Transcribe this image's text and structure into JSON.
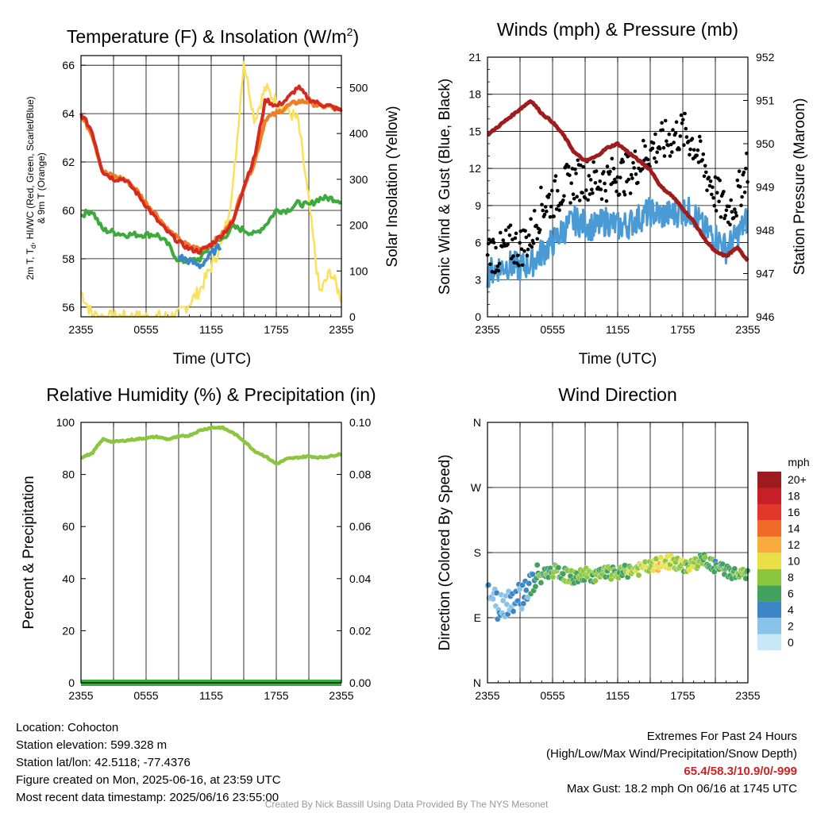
{
  "colors": {
    "t2m": "#d52a1f",
    "td": "#3caa3c",
    "hiwc": "#3a86c8",
    "t9m": "#f07e26",
    "solar": "#fbe05a",
    "wind": "#4a9ad6",
    "gust": "#000000",
    "pressure": "#a01b1b",
    "rh": "#8cc540",
    "precip": "#3caa3c"
  },
  "x_axis": {
    "tick_labels": [
      "2355",
      "0555",
      "1155",
      "1755",
      "2355"
    ],
    "xlabel": "Time (UTC)"
  },
  "panels": {
    "temperature": {
      "title": "Temperature (F) & Insolation (W/m",
      "title_sup": "2",
      "title_close": ")",
      "ylabel_left_line1": "2m T, T",
      "ylabel_left_sub": "d",
      "ylabel_left_line1_rest": ", HI/WC (Red, Green, Scarlet/Blue)",
      "ylabel_left_line2": "& 9m T (Orange)",
      "ylabel_right": "Solar Insolation (Yellow)",
      "xlabel": "Time (UTC)",
      "left_ticks": [
        "56",
        "58",
        "60",
        "62",
        "64",
        "66"
      ],
      "right_ticks": [
        "0",
        "100",
        "200",
        "300",
        "400",
        "500"
      ]
    },
    "winds": {
      "title": "Winds (mph) & Pressure (mb)",
      "ylabel_left": "Sonic Wind & Gust (Blue, Black)",
      "ylabel_right": "Station Pressure (Maroon)",
      "xlabel": "Time (UTC)",
      "left_ticks": [
        "0",
        "3",
        "6",
        "9",
        "12",
        "15",
        "18",
        "21"
      ],
      "right_ticks": [
        "946",
        "947",
        "948",
        "949",
        "950",
        "951",
        "952"
      ]
    },
    "humidity": {
      "title": "Relative Humidity (%) & Precipitation (in)",
      "ylabel_left": "Percent & Precipitation",
      "left_ticks": [
        "0",
        "20",
        "40",
        "60",
        "80",
        "100"
      ],
      "right_ticks": [
        "0.00",
        "0.02",
        "0.04",
        "0.06",
        "0.08",
        "0.10"
      ]
    },
    "direction": {
      "title": "Wind Direction",
      "ylabel_left": "Direction (Colored By Speed)",
      "left_ticks": [
        "N",
        "E",
        "S",
        "W",
        "N"
      ],
      "colorbar_title": "mph",
      "colorbar_labels": [
        "0",
        "2",
        "4",
        "6",
        "8",
        "10",
        "12",
        "14",
        "16",
        "18",
        "20+"
      ],
      "colorbar_colors": [
        "#c8e8f8",
        "#89c3ea",
        "#3c86c6",
        "#42a15b",
        "#8cc63e",
        "#e9df47",
        "#f9ab3d",
        "#f26a27",
        "#e2382b",
        "#c62026",
        "#9b1b1e"
      ]
    }
  },
  "chart_data": [
    {
      "type": "line",
      "title": "Temperature (F) & Insolation (W/m2)",
      "xlabel": "Time (UTC)",
      "x": [
        0,
        1,
        2,
        3,
        4,
        5,
        6,
        7,
        8,
        9,
        10,
        11,
        12,
        13,
        14,
        15,
        16,
        17,
        18,
        19,
        20,
        21,
        22,
        23,
        24
      ],
      "x_tick_labels": [
        "2355",
        "0555",
        "1155",
        "1755",
        "2355"
      ],
      "ylim": [
        55.6,
        66.4
      ],
      "y2lim": [
        0,
        570
      ],
      "series": [
        {
          "name": "2m T (Red)",
          "values": [
            64.0,
            63.3,
            61.6,
            61.3,
            61.3,
            60.8,
            60.2,
            59.6,
            59.1,
            58.7,
            58.4,
            58.3,
            58.6,
            59.0,
            59.5,
            61.0,
            62.2,
            64.6,
            64.3,
            64.6,
            65.1,
            64.6,
            64.4,
            64.3,
            64.1
          ]
        },
        {
          "name": "Dewpoint (Green)",
          "values": [
            59.8,
            60.0,
            59.2,
            59.1,
            59.0,
            59.0,
            59.0,
            59.0,
            58.6,
            57.9,
            57.9,
            58.0,
            58.6,
            58.8,
            59.3,
            59.2,
            59.0,
            59.4,
            60.0,
            60.0,
            60.3,
            60.2,
            60.5,
            60.5,
            60.4
          ]
        },
        {
          "name": "HI/WC (Scarlet/Blue)",
          "values": [
            null,
            null,
            null,
            null,
            null,
            null,
            null,
            null,
            null,
            58.1,
            57.9,
            57.7,
            58.2,
            58.6,
            null,
            null,
            null,
            null,
            null,
            null,
            null,
            null,
            null,
            null,
            null
          ]
        },
        {
          "name": "9m T (Orange)",
          "values": [
            63.9,
            63.2,
            61.6,
            61.4,
            61.3,
            60.9,
            60.3,
            59.8,
            59.2,
            58.8,
            58.5,
            58.4,
            58.6,
            59.0,
            59.6,
            61.0,
            62.0,
            63.8,
            64.0,
            64.3,
            64.5,
            64.5,
            64.3,
            64.3,
            64.1
          ]
        },
        {
          "name": "Solar Insolation (Yellow)",
          "axis": "right",
          "values": [
            55,
            5,
            0,
            0,
            0,
            0,
            0,
            0,
            0,
            5,
            30,
            60,
            110,
            160,
            280,
            560,
            430,
            500,
            470,
            450,
            430,
            250,
            50,
            100,
            40
          ]
        }
      ]
    },
    {
      "type": "line",
      "title": "Winds (mph) & Pressure (mb)",
      "xlabel": "Time (UTC)",
      "x": [
        0,
        1,
        2,
        3,
        4,
        5,
        6,
        7,
        8,
        9,
        10,
        11,
        12,
        13,
        14,
        15,
        16,
        17,
        18,
        19,
        20,
        21,
        22,
        23,
        24
      ],
      "x_tick_labels": [
        "2355",
        "0555",
        "1155",
        "1755",
        "2355"
      ],
      "ylim": [
        0,
        21
      ],
      "y2lim": [
        946,
        952
      ],
      "series": [
        {
          "name": "Sonic Wind (Blue)",
          "values": [
            3.5,
            4.0,
            4.2,
            4.0,
            4.3,
            5.2,
            6.0,
            7.0,
            7.8,
            7.5,
            7.2,
            7.8,
            7.3,
            7.5,
            8.0,
            8.5,
            8.2,
            8.3,
            8.6,
            8.4,
            7.0,
            6.5,
            5.5,
            6.5,
            8.0
          ]
        },
        {
          "name": "Gust (Black)",
          "values": [
            5.5,
            5.0,
            5.8,
            5.6,
            6.5,
            9.0,
            9.5,
            10.5,
            11.0,
            11.2,
            11.0,
            11.0,
            11.5,
            11.5,
            12.5,
            13.5,
            14.0,
            14.5,
            15.0,
            14.0,
            12.0,
            10.0,
            8.5,
            9.5,
            12.5
          ]
        },
        {
          "name": "Station Pressure (Maroon)",
          "axis": "right",
          "values": [
            950.2,
            950.4,
            950.6,
            950.8,
            951.0,
            950.7,
            950.5,
            950.2,
            949.8,
            949.6,
            949.7,
            949.9,
            950.0,
            949.8,
            949.6,
            949.4,
            949.0,
            948.8,
            948.5,
            948.2,
            947.8,
            947.5,
            947.4,
            947.6,
            947.3
          ]
        }
      ]
    },
    {
      "type": "line",
      "title": "Relative Humidity (%) & Precipitation (in)",
      "x": [
        0,
        1,
        2,
        3,
        4,
        5,
        6,
        7,
        8,
        9,
        10,
        11,
        12,
        13,
        14,
        15,
        16,
        17,
        18,
        19,
        20,
        21,
        22,
        23,
        24
      ],
      "x_tick_labels": [
        "2355",
        "0555",
        "1155",
        "1755",
        "2355"
      ],
      "ylim": [
        0,
        100
      ],
      "y2lim": [
        0,
        0.1
      ],
      "series": [
        {
          "name": "Relative Humidity",
          "values": [
            86.5,
            88.0,
            93.5,
            92.5,
            93.0,
            93.5,
            94.0,
            94.5,
            93.5,
            94.5,
            95.0,
            97.0,
            98.0,
            98.0,
            96.0,
            93.0,
            89.0,
            87.0,
            84.0,
            86.0,
            86.5,
            87.0,
            86.5,
            87.0,
            88.0
          ]
        },
        {
          "name": "Precipitation",
          "axis": "right",
          "values": [
            0,
            0,
            0,
            0,
            0,
            0,
            0,
            0,
            0,
            0,
            0,
            0,
            0,
            0,
            0,
            0,
            0,
            0,
            0,
            0,
            0,
            0,
            0,
            0,
            0
          ]
        }
      ]
    },
    {
      "type": "scatter",
      "title": "Wind Direction",
      "x": [
        0,
        1,
        2,
        3,
        4,
        5,
        6,
        7,
        8,
        9,
        10,
        11,
        12,
        13,
        14,
        15,
        16,
        17,
        18,
        19,
        20,
        21,
        22,
        23,
        24
      ],
      "x_tick_labels": [
        "2355",
        "0555",
        "1155",
        "1755",
        "2355"
      ],
      "ylim": [
        0,
        360
      ],
      "y_tick_labels": [
        "N",
        "E",
        "S",
        "W",
        "N"
      ],
      "series": [
        {
          "name": "Direction (deg)",
          "values": [
            130,
            105,
            115,
            120,
            135,
            150,
            155,
            150,
            145,
            150,
            148,
            152,
            150,
            155,
            157,
            160,
            165,
            168,
            160,
            165,
            170,
            160,
            155,
            150,
            148
          ]
        },
        {
          "name": "Speed (mph)",
          "values": [
            3,
            3,
            3,
            3,
            4,
            6,
            6,
            7,
            7,
            8,
            7,
            8,
            7,
            8,
            9,
            9,
            10,
            9,
            8,
            8,
            7,
            6,
            6,
            7,
            8
          ]
        }
      ]
    }
  ],
  "info": {
    "location": "Location: Cohocton",
    "elevation": "Station elevation: 599.328 m",
    "latlon": "Station lat/lon: 42.5118; -77.4376",
    "created": "Figure created on Mon, 2025-06-16, at 23:59 UTC",
    "recent": "Most recent data timestamp: 2025/06/16 23:55:00"
  },
  "extremes": {
    "title": "Extremes For Past 24 Hours",
    "subtitle": "(High/Low/Max Wind/Precipitation/Snow Depth)",
    "values": "65.4/58.3/10.9/0/-999",
    "max_gust": "Max Gust: 18.2 mph On 06/16 at 1745 UTC"
  },
  "credit": "Created By Nick Bassill Using Data Provided By The NYS Mesonet"
}
